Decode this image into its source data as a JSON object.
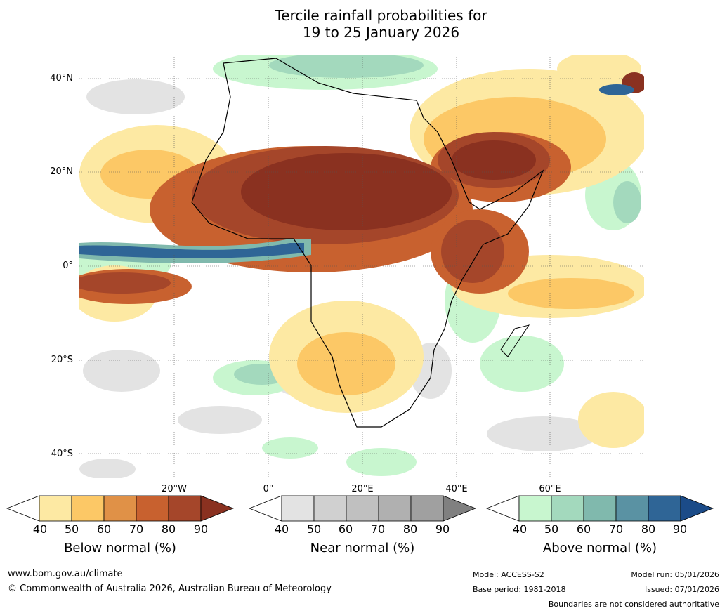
{
  "title": {
    "line1": "Tercile rainfall probabilities for",
    "line2": "19 to 25 January 2026"
  },
  "map": {
    "lat_labels": [
      "40°N",
      "20°N",
      "0°",
      "20°S",
      "40°S"
    ],
    "lon_labels": [
      "20°W",
      "0°",
      "20°E",
      "40°E",
      "60°E"
    ]
  },
  "colorbars": [
    {
      "label": "Below normal (%)",
      "ticks": [
        "40",
        "50",
        "60",
        "70",
        "80",
        "90"
      ],
      "colors": [
        "#ffffff",
        "#fde9a3",
        "#fcc866",
        "#e09147",
        "#c8612f",
        "#a5462a",
        "#8a3120"
      ]
    },
    {
      "label": "Near normal (%)",
      "ticks": [
        "40",
        "50",
        "60",
        "70",
        "80",
        "90"
      ],
      "colors": [
        "#ffffff",
        "#e3e3e3",
        "#d0d0d0",
        "#c0c0c0",
        "#b0b0b0",
        "#a0a0a0",
        "#808080"
      ]
    },
    {
      "label": "Above normal (%)",
      "ticks": [
        "40",
        "50",
        "60",
        "70",
        "80",
        "90"
      ],
      "colors": [
        "#ffffff",
        "#c8f6cf",
        "#a3d9bd",
        "#80b9ad",
        "#5a92a3",
        "#2f6596",
        "#1b4b88"
      ]
    }
  ],
  "footer": {
    "url": "www.bom.gov.au/climate",
    "copyright": "© Commonwealth of Australia 2026, Australian Bureau of Meteorology",
    "model": "Model: ACCESS-S2",
    "base_period": "Base period: 1981-2018",
    "model_run": "Model run: 05/01/2026",
    "issued": "Issued: 07/01/2026",
    "disclaimer": "Boundaries are not considered authoritative"
  }
}
